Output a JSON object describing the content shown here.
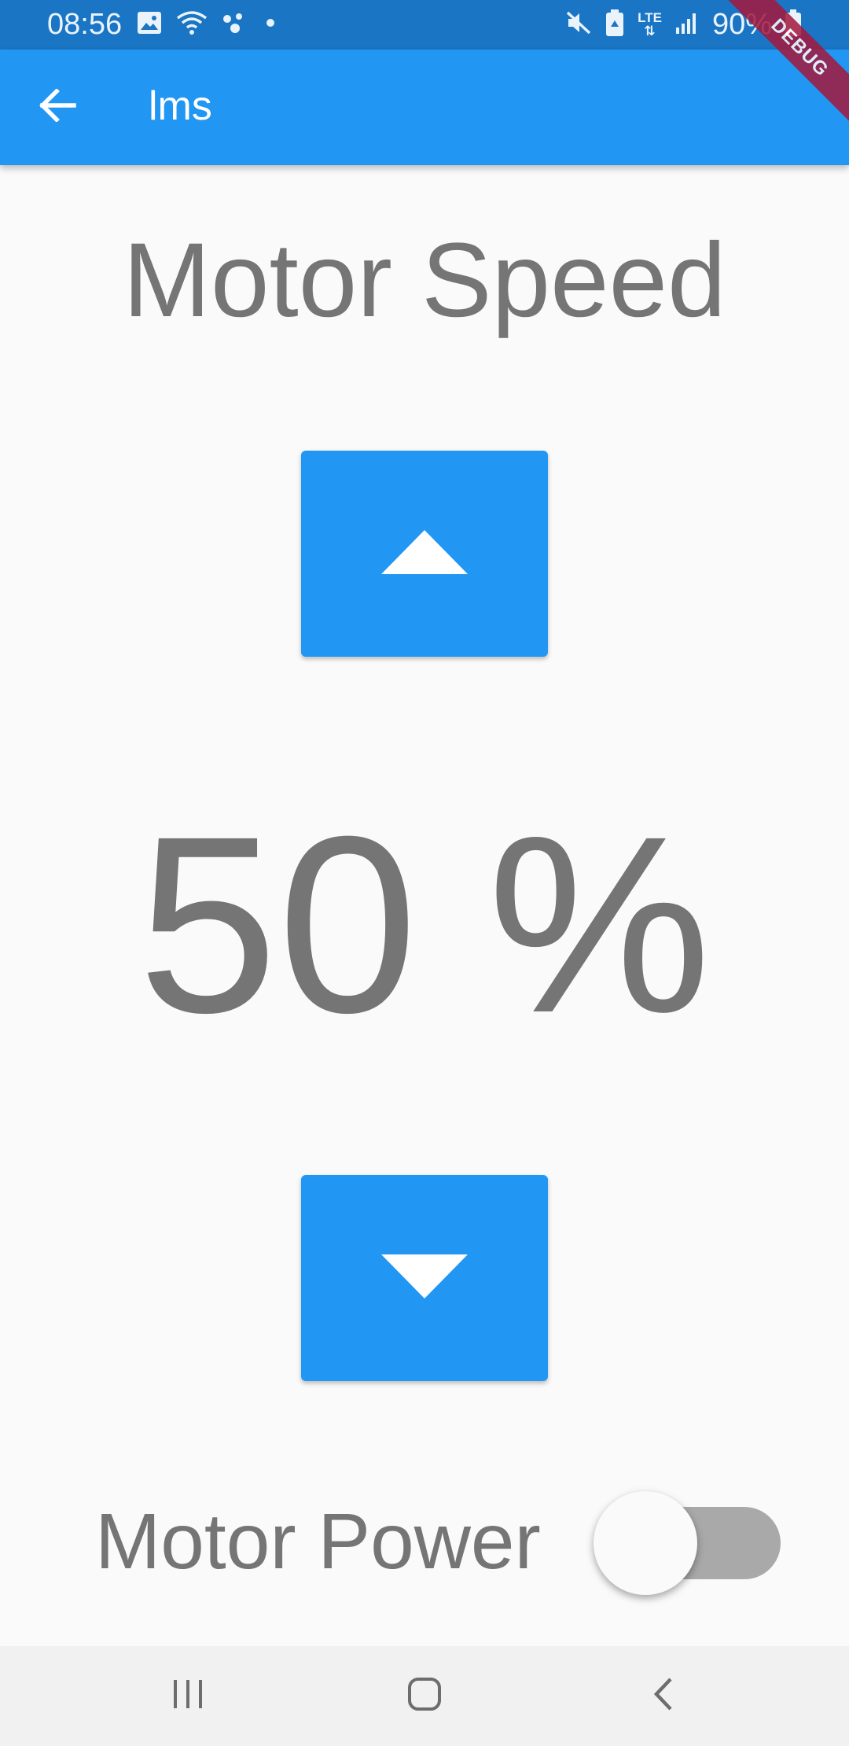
{
  "status_bar": {
    "time": "08:56",
    "battery_text": "90%",
    "network_label": "LTE",
    "icons": [
      "gallery-icon",
      "wifi-icon",
      "assistant-icon",
      "notification-dot-icon",
      "mute-icon",
      "battery-saver-icon",
      "lte-icon",
      "signal-icon",
      "battery-icon"
    ]
  },
  "app_bar": {
    "title": "lms",
    "back_icon": "arrow-back-icon"
  },
  "debug_banner": {
    "label": "DEBUG",
    "color": "#a4183c"
  },
  "main": {
    "heading": "Motor Speed",
    "speed_value": "50 %",
    "speed_percent": 50,
    "increase_icon": "triangle-up-icon",
    "decrease_icon": "triangle-down-icon",
    "power_label": "Motor Power",
    "power_switch_on": false
  },
  "nav_bar": {
    "items": [
      "recents-icon",
      "home-icon",
      "back-icon"
    ]
  },
  "colors": {
    "primary": "#2196f3",
    "status_bar": "#1a75c4",
    "text": "#757575",
    "background": "#fafafa",
    "switch_track_off": "#a9a9a9"
  }
}
